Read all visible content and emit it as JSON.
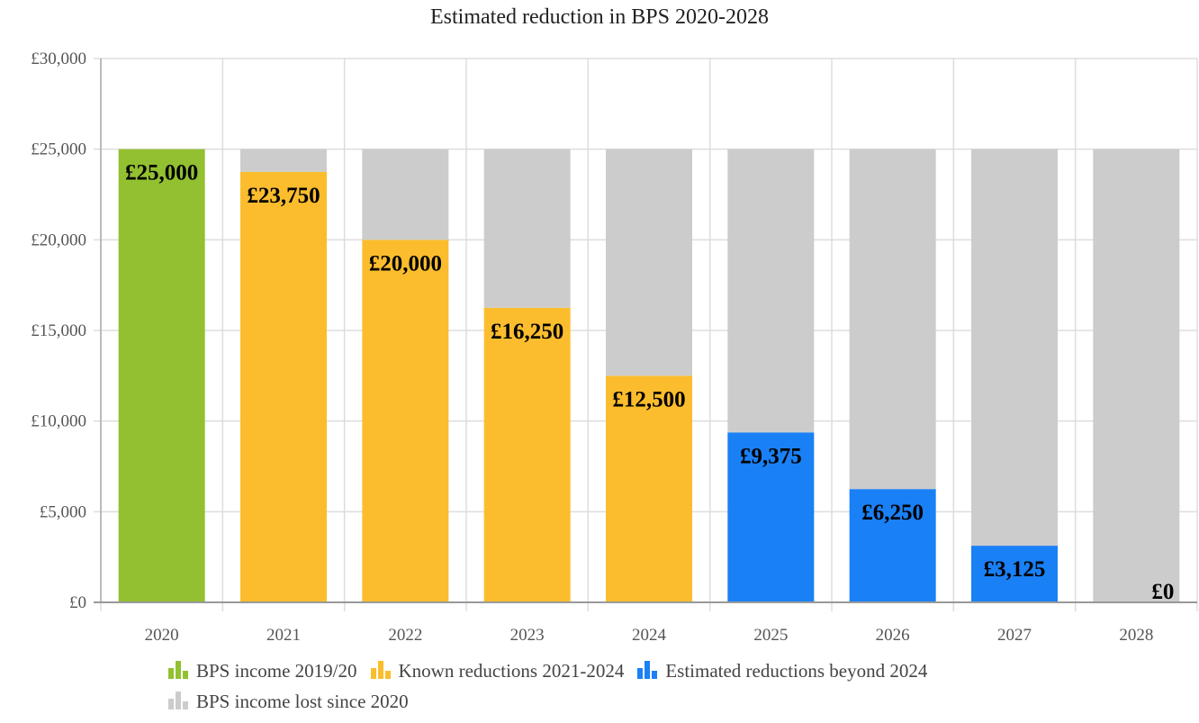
{
  "chart_data": {
    "type": "bar",
    "title": "Estimated reduction in BPS 2020-2028",
    "xlabel": "",
    "ylabel": "",
    "categories": [
      "2020",
      "2021",
      "2022",
      "2023",
      "2024",
      "2025",
      "2026",
      "2027",
      "2028"
    ],
    "ylim": [
      0,
      30000
    ],
    "yticks": [
      0,
      5000,
      10000,
      15000,
      20000,
      25000,
      30000
    ],
    "ytick_labels": [
      "£0",
      "£5,000",
      "£10,000",
      "£15,000",
      "£20,000",
      "£25,000",
      "£30,000"
    ],
    "stacked": true,
    "grid": true,
    "legend_position": "bottom",
    "series": [
      {
        "name": "BPS income 2019/20",
        "color": "#93c030",
        "values": [
          25000,
          0,
          0,
          0,
          0,
          0,
          0,
          0,
          0
        ]
      },
      {
        "name": "Known reductions 2021-2024",
        "color": "#fbbd2d",
        "values": [
          0,
          23750,
          20000,
          16250,
          12500,
          0,
          0,
          0,
          0
        ]
      },
      {
        "name": "Estimated reductions beyond 2024",
        "color": "#1a80f5",
        "values": [
          0,
          0,
          0,
          0,
          0,
          9375,
          6250,
          3125,
          0
        ]
      },
      {
        "name": "BPS income lost since 2020",
        "color": "#cccccc",
        "values": [
          0,
          1250,
          5000,
          8750,
          12500,
          15625,
          18750,
          21875,
          25000
        ]
      }
    ],
    "data_labels": [
      "£25,000",
      "£23,750",
      "£20,000",
      "£16,250",
      "£12,500",
      "£9,375",
      "£6,250",
      "£3,125",
      "£0"
    ]
  }
}
